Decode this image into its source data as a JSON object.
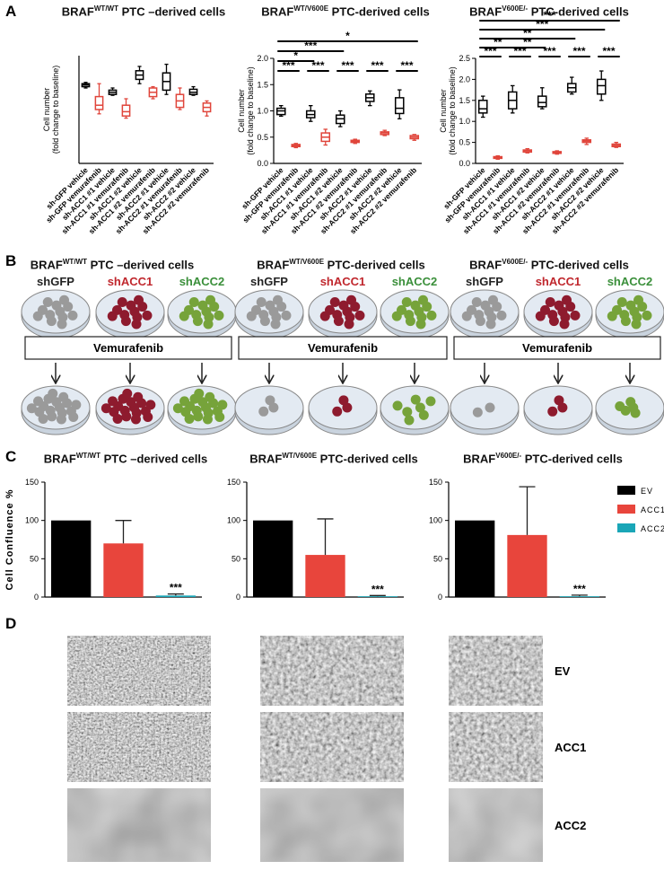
{
  "panel_labels": [
    "A",
    "B",
    "C",
    "D"
  ],
  "chart_data": [
    {
      "type": "box",
      "title": {
        "base": "BRAF",
        "sup": "WT/WT",
        "rest": " PTC –derived cells"
      },
      "y_label": [
        "Cell number",
        "(fold change to baseline)"
      ],
      "categories": [
        "sh-GFP vehicle",
        "sh-GFP vemurafenib",
        "sh-ACC1 #1 vehicle",
        "sh-ACC1 #1 vemurafenib",
        "sh-ACC1 #2 vehicle",
        "sh-ACC1 #2 vemurafenib",
        "sh-ACC2 #1 vehicle",
        "sh-ACC2 #1 vemurafenib",
        "sh-ACC2 #2 vehicle",
        "sh-ACC2 #2 vemurafenib"
      ],
      "values": [
        [
          1.75,
          1.78,
          1.82,
          1.85,
          1.88
        ],
        [
          1.15,
          1.25,
          1.35,
          1.55,
          1.85
        ],
        [
          1.58,
          1.6,
          1.65,
          1.7,
          1.75
        ],
        [
          1.05,
          1.1,
          1.2,
          1.35,
          1.5
        ],
        [
          1.85,
          1.95,
          2.05,
          2.15,
          2.25
        ],
        [
          1.5,
          1.55,
          1.65,
          1.75,
          1.78
        ],
        [
          1.6,
          1.7,
          1.9,
          2.1,
          2.3
        ],
        [
          1.25,
          1.3,
          1.45,
          1.6,
          1.75
        ],
        [
          1.58,
          1.6,
          1.65,
          1.72,
          1.78
        ],
        [
          1.1,
          1.2,
          1.3,
          1.4,
          1.45
        ]
      ],
      "colors": [
        "#000000",
        "#e0453b",
        "#000000",
        "#e0453b",
        "#000000",
        "#e0453b",
        "#000000",
        "#e0453b",
        "#000000",
        "#e0453b"
      ],
      "ylim": [
        0,
        2.5
      ],
      "annotations": []
    },
    {
      "type": "box",
      "title": {
        "base": "BRAF",
        "sup": "WT/V600E",
        "rest": " PTC-derived cells"
      },
      "y_label": [
        "Cell number",
        "(fold change to baseline)"
      ],
      "categories": [
        "sh-GFP vehicle",
        "sh-GFP vemurafenib",
        "sh-ACC1 #1 vehicle",
        "sh-ACC1 #1 vemurafenib",
        "sh-ACC1 #2 vehicle",
        "sh-ACC1 #2 vemurafenib",
        "sh-ACC2 #1 vehicle",
        "sh-ACC2 #1 vemurafenib",
        "sh-ACC2 #2 vehicle",
        "sh-ACC2 #2 vemurafenib"
      ],
      "values": [
        [
          0.9,
          0.93,
          1.0,
          1.05,
          1.1
        ],
        [
          0.3,
          0.32,
          0.34,
          0.36,
          0.38
        ],
        [
          0.8,
          0.87,
          0.93,
          1.0,
          1.1
        ],
        [
          0.35,
          0.42,
          0.5,
          0.58,
          0.65
        ],
        [
          0.7,
          0.76,
          0.85,
          0.92,
          1.0
        ],
        [
          0.38,
          0.4,
          0.42,
          0.44,
          0.46
        ],
        [
          1.1,
          1.18,
          1.25,
          1.32,
          1.38
        ],
        [
          0.53,
          0.55,
          0.58,
          0.6,
          0.63
        ],
        [
          0.85,
          0.95,
          1.05,
          1.25,
          1.4
        ],
        [
          0.44,
          0.47,
          0.5,
          0.53,
          0.55
        ]
      ],
      "colors": [
        "#000000",
        "#e0453b",
        "#000000",
        "#e0453b",
        "#000000",
        "#e0453b",
        "#000000",
        "#e0453b",
        "#000000",
        "#e0453b"
      ],
      "ylim": [
        0,
        2
      ],
      "yticks": [
        {
          "value": 0,
          "label": "0.0"
        },
        0.5,
        {
          "value": 1,
          "label": "1.0"
        },
        1.5,
        {
          "value": 2,
          "label": "2.0"
        }
      ],
      "annotations": [
        "***",
        "***",
        "***",
        "***",
        "***",
        "*",
        "***",
        "*"
      ]
    },
    {
      "type": "box",
      "title": {
        "base": "BRAF",
        "sup": "V600E/-",
        "rest": " PTC-derived cells"
      },
      "y_label": [
        "Cell number",
        "(fold change to baseline)"
      ],
      "categories": [
        "sh-GFP vehicle",
        "sh-GFP vemurafenib",
        "sh-ACC1 #1 vehicle",
        "sh-ACC1 #1 vemurafenib",
        "sh-ACC1 #2 vehicle",
        "sh-ACC1 #2 vemurafenib",
        "sh-ACC2 #1 vehicle",
        "sh-ACC2 #1 vemurafenib",
        "sh-ACC2 #2 vehicle",
        "sh-ACC2 #2 vemurafenib"
      ],
      "values": [
        [
          1.1,
          1.2,
          1.3,
          1.5,
          1.6
        ],
        [
          0.1,
          0.12,
          0.14,
          0.16,
          0.18
        ],
        [
          1.2,
          1.3,
          1.5,
          1.7,
          1.85
        ],
        [
          0.25,
          0.27,
          0.3,
          0.32,
          0.35
        ],
        [
          1.3,
          1.35,
          1.45,
          1.6,
          1.8
        ],
        [
          0.22,
          0.24,
          0.26,
          0.28,
          0.3
        ],
        [
          1.65,
          1.7,
          1.8,
          1.9,
          2.05
        ],
        [
          0.45,
          0.5,
          0.53,
          0.56,
          0.6
        ],
        [
          1.5,
          1.65,
          1.85,
          2.0,
          2.2
        ],
        [
          0.38,
          0.4,
          0.43,
          0.46,
          0.5
        ]
      ],
      "colors": [
        "#000000",
        "#e0453b",
        "#000000",
        "#e0453b",
        "#000000",
        "#e0453b",
        "#000000",
        "#e0453b",
        "#000000",
        "#e0453b"
      ],
      "ylim": [
        0,
        2.5
      ],
      "yticks": [
        {
          "value": 0,
          "label": "0.0"
        },
        0.5,
        {
          "value": 1,
          "label": "1.0"
        },
        1.5,
        {
          "value": 2,
          "label": "2.0"
        },
        2.5
      ],
      "annotations": [
        "***",
        "***",
        "***",
        "***",
        "***",
        "**",
        "**",
        "**",
        "***",
        "***"
      ]
    },
    {
      "type": "bar",
      "title": {
        "base": "BRAF",
        "sup": "WT/WT",
        "rest": " PTC –derived cells"
      },
      "y_label": "Cell Confluence %",
      "values": [
        100,
        70,
        2
      ],
      "errors": [
        0,
        30,
        2
      ],
      "colors": [
        "#000000",
        "#e8453c",
        "#1aa6b7"
      ],
      "annotations": [
        null,
        null,
        "***"
      ],
      "ylim": [
        0,
        150
      ],
      "yticks": [
        0,
        50,
        100,
        150
      ]
    },
    {
      "type": "bar",
      "title": {
        "base": "BRAF",
        "sup": "WT/V600E",
        "rest": " PTC-derived cells"
      },
      "values": [
        100,
        55,
        1
      ],
      "errors": [
        0,
        47,
        1
      ],
      "colors": [
        "#000000",
        "#e8453c",
        "#1aa6b7"
      ],
      "annotations": [
        null,
        null,
        "***"
      ],
      "ylim": [
        0,
        150
      ],
      "yticks": [
        0,
        50,
        100,
        150
      ]
    },
    {
      "type": "bar",
      "title": {
        "base": "BRAF",
        "sup": "V600E/-",
        "rest": " PTC-derived cells"
      },
      "categories": [
        "EV",
        "ACC1",
        "ACC2"
      ],
      "legend": "right",
      "values": [
        100,
        81,
        1
      ],
      "errors": [
        0,
        63,
        1.5
      ],
      "colors": [
        "#000000",
        "#e8453c",
        "#1aa6b7"
      ],
      "annotations": [
        null,
        null,
        "***"
      ],
      "ylim": [
        0,
        150
      ],
      "yticks": [
        0,
        50,
        100,
        150
      ]
    }
  ],
  "diagram": {
    "columns": [
      {
        "title": {
          "base": "BRAF",
          "sup": "WT/WT",
          "rest": " PTC –derived cells"
        },
        "groups": [
          "shGFP",
          "shACC1",
          "shACC2"
        ],
        "treatment": "Vemurafenib"
      },
      {
        "title": {
          "base": "BRAF",
          "sup": "WT/V600E",
          "rest": " PTC-derived cells"
        },
        "groups": [
          "shGFP",
          "shACC1",
          "shACC2"
        ],
        "treatment": "Vemurafenib"
      },
      {
        "title": {
          "base": "BRAF",
          "sup": "V600E/-",
          "rest": " PTC-derived cells"
        },
        "groups": [
          "shGFP",
          "shACC1",
          "shACC2"
        ],
        "treatment": "Vemurafenib"
      }
    ],
    "group_colors": [
      "#222222",
      "#c0272d",
      "#3a8f3a"
    ],
    "dot_colors": [
      "#9a9a9a",
      "#8e1b2e",
      "#76a33a"
    ]
  },
  "micrographs": {
    "row_labels": [
      "EV",
      "ACC1",
      "ACC2"
    ]
  }
}
